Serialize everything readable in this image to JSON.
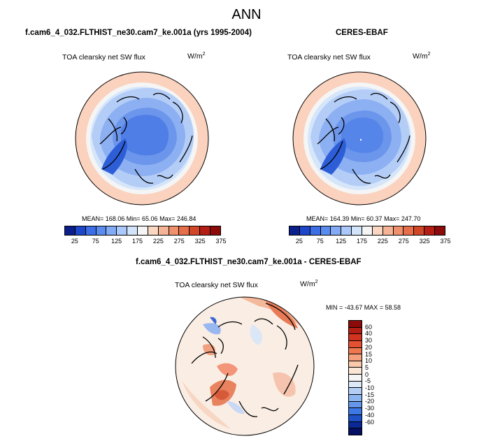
{
  "title": "ANN",
  "panels": [
    {
      "title": "f.cam6_4_032.FLTHIST_ne30.cam7_ke.001a (yrs 1995-2004)",
      "variable": "TOA clearsky net SW flux",
      "units": "W/m",
      "units_sup": "2",
      "stats": "MEAN= 168.06  Min=  65.06  Max= 246.84"
    },
    {
      "title": "CERES-EBAF",
      "variable": "TOA clearsky net SW flux",
      "units": "W/m",
      "units_sup": "2",
      "stats": "MEAN= 164.39  Min=  60.37  Max= 247.70"
    },
    {
      "title": "f.cam6_4_032.FLTHIST_ne30.cam7_ke.001a - CERES-EBAF",
      "variable": "TOA clearsky net SW flux",
      "units": "W/m",
      "units_sup": "2",
      "stats": "MIN = -43.67 MAX =  58.58"
    }
  ],
  "colorbar_abs": {
    "colors": [
      "#0a1e8c",
      "#1e46c8",
      "#3c6ee6",
      "#5a8cf0",
      "#82aaf5",
      "#aac8fa",
      "#d2e4fa",
      "#f5f5f5",
      "#fad7c3",
      "#f5b496",
      "#f0916e",
      "#e66e4b",
      "#d24628",
      "#b41e14",
      "#8c0a0a"
    ],
    "tick_labels": [
      "25",
      "75",
      "125",
      "175",
      "225",
      "275",
      "325",
      "375"
    ]
  },
  "colorbar_diff": {
    "colors": [
      "#8c0a0a",
      "#b41e14",
      "#d2321e",
      "#e65032",
      "#f07850",
      "#f5a07d",
      "#fac8aa",
      "#fae6d7",
      "#f5f5f5",
      "#dce8f8",
      "#b4cdf5",
      "#8cb4f0",
      "#6496eb",
      "#3c78e6",
      "#1e50c8",
      "#0a2896",
      "#050f64"
    ],
    "tick_labels": [
      "60",
      "40",
      "30",
      "20",
      "15",
      "10",
      "5",
      "0",
      "-5",
      "-10",
      "-15",
      "-20",
      "-30",
      "-40",
      "-60"
    ]
  }
}
